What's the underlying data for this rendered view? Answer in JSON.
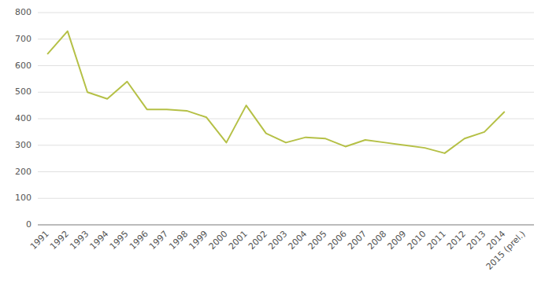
{
  "chart_data": {
    "type": "line",
    "categories": [
      "1991",
      "1992",
      "1993",
      "1994",
      "1995",
      "1996",
      "1997",
      "1998",
      "1999",
      "2000",
      "2001",
      "2002",
      "2003",
      "2004",
      "2005",
      "2006",
      "2007",
      "2008",
      "2009",
      "2010",
      "2011",
      "2012",
      "2013",
      "2014",
      "2015 (prel.)"
    ],
    "values": [
      645,
      730,
      500,
      475,
      540,
      435,
      435,
      430,
      405,
      310,
      450,
      345,
      310,
      330,
      325,
      295,
      320,
      310,
      300,
      290,
      270,
      325,
      350,
      425,
      null
    ],
    "color": "#b5c046",
    "ylim": [
      0,
      800
    ],
    "yticks": [
      0,
      100,
      200,
      300,
      400,
      500,
      600,
      700,
      800
    ],
    "grid": true
  }
}
